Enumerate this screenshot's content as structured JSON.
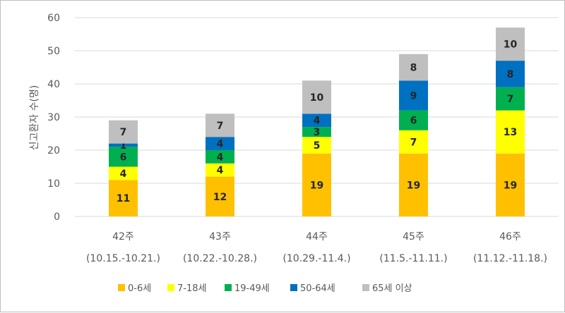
{
  "chart_data": {
    "type": "bar",
    "stacked": true,
    "categories": [
      "42주",
      "43주",
      "44주",
      "45주",
      "46주"
    ],
    "category_sublabels": [
      "(10.15.-10.21.)",
      "(10.22.-10.28.)",
      "(10.29.-11.4.)",
      "(11.5.-11.11.)",
      "(11.12.-11.18.)"
    ],
    "series": [
      {
        "name": "0-6세",
        "color": "#FFC000",
        "values": [
          11,
          12,
          19,
          19,
          19
        ]
      },
      {
        "name": "7-18세",
        "color": "#FFFF00",
        "values": [
          4,
          4,
          5,
          7,
          13
        ]
      },
      {
        "name": "19-49세",
        "color": "#00B050",
        "values": [
          6,
          4,
          3,
          6,
          7
        ]
      },
      {
        "name": "50-64세",
        "color": "#0070C0",
        "values": [
          1,
          4,
          4,
          9,
          8
        ]
      },
      {
        "name": "65세 이상",
        "color": "#BFBFBF",
        "values": [
          7,
          7,
          10,
          8,
          10
        ]
      }
    ],
    "ylabel": "신고환자 수(명)",
    "ylim": [
      0,
      60
    ],
    "yticks": [
      0,
      10,
      20,
      30,
      40,
      50,
      60
    ],
    "grid": true,
    "legend_position": "bottom"
  }
}
